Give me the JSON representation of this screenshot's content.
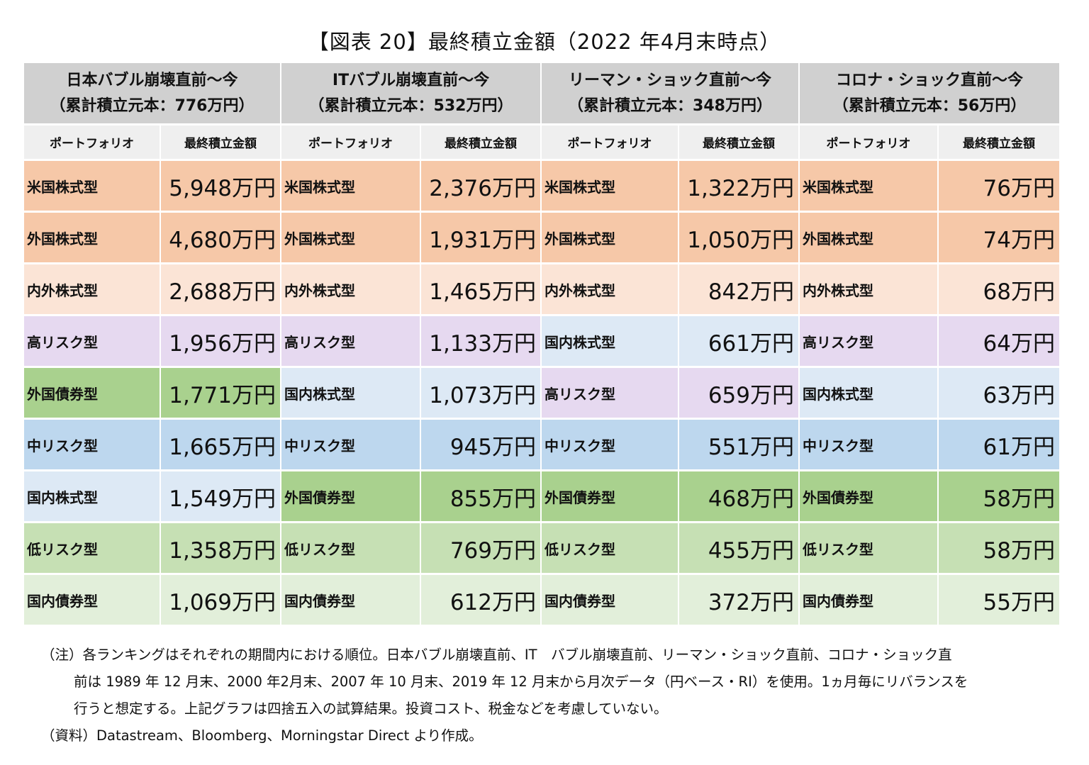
{
  "title": "【図表 20】最終積立金額（2022 年4月末時点）",
  "periods": [
    {
      "name": "日本バブル崩壊直前～今",
      "principal": "（累計積立元本：776万円）"
    },
    {
      "name": "ITバブル崩壊直前～今",
      "principal": "（累計積立元本：532万円）"
    },
    {
      "name": "リーマン・ショック直前～今",
      "principal": "（累計積立元本：348万円）"
    },
    {
      "name": "コロナ・ショック直前～今",
      "principal": "（累計積立元本：56万円）"
    }
  ],
  "subheaders": {
    "portfolio": "ポートフォリオ",
    "amount": "最終積立金額"
  },
  "rows": [
    [
      {
        "name": "米国株式型",
        "value": "5,948万円",
        "color": "us"
      },
      {
        "name": "米国株式型",
        "value": "2,376万円",
        "color": "us"
      },
      {
        "name": "米国株式型",
        "value": "1,322万円",
        "color": "us"
      },
      {
        "name": "米国株式型",
        "value": "76万円",
        "color": "us"
      }
    ],
    [
      {
        "name": "外国株式型",
        "value": "4,680万円",
        "color": "for"
      },
      {
        "name": "外国株式型",
        "value": "1,931万円",
        "color": "for"
      },
      {
        "name": "外国株式型",
        "value": "1,050万円",
        "color": "for"
      },
      {
        "name": "外国株式型",
        "value": "74万円",
        "color": "for"
      }
    ],
    [
      {
        "name": "内外株式型",
        "value": "2,688万円",
        "color": "in"
      },
      {
        "name": "内外株式型",
        "value": "1,465万円",
        "color": "in"
      },
      {
        "name": "内外株式型",
        "value": "842万円",
        "color": "in"
      },
      {
        "name": "内外株式型",
        "value": "68万円",
        "color": "in"
      }
    ],
    [
      {
        "name": "高リスク型",
        "value": "1,956万円",
        "color": "hi"
      },
      {
        "name": "高リスク型",
        "value": "1,133万円",
        "color": "hi"
      },
      {
        "name": "国内株式型",
        "value": "661万円",
        "color": "dom"
      },
      {
        "name": "高リスク型",
        "value": "64万円",
        "color": "hi"
      }
    ],
    [
      {
        "name": "外国債券型",
        "value": "1,771万円",
        "color": "fb"
      },
      {
        "name": "国内株式型",
        "value": "1,073万円",
        "color": "dom"
      },
      {
        "name": "高リスク型",
        "value": "659万円",
        "color": "hi"
      },
      {
        "name": "国内株式型",
        "value": "63万円",
        "color": "dom"
      }
    ],
    [
      {
        "name": "中リスク型",
        "value": "1,665万円",
        "color": "mid"
      },
      {
        "name": "中リスク型",
        "value": "945万円",
        "color": "mid"
      },
      {
        "name": "中リスク型",
        "value": "551万円",
        "color": "mid"
      },
      {
        "name": "中リスク型",
        "value": "61万円",
        "color": "mid"
      }
    ],
    [
      {
        "name": "国内株式型",
        "value": "1,549万円",
        "color": "dom"
      },
      {
        "name": "外国債券型",
        "value": "855万円",
        "color": "fb"
      },
      {
        "name": "外国債券型",
        "value": "468万円",
        "color": "fb"
      },
      {
        "name": "外国債券型",
        "value": "58万円",
        "color": "fb"
      }
    ],
    [
      {
        "name": "低リスク型",
        "value": "1,358万円",
        "color": "low"
      },
      {
        "name": "低リスク型",
        "value": "769万円",
        "color": "low"
      },
      {
        "name": "低リスク型",
        "value": "455万円",
        "color": "low"
      },
      {
        "name": "低リスク型",
        "value": "58万円",
        "color": "low"
      }
    ],
    [
      {
        "name": "国内債券型",
        "value": "1,069万円",
        "color": "db"
      },
      {
        "name": "国内債券型",
        "value": "612万円",
        "color": "db"
      },
      {
        "name": "国内債券型",
        "value": "372万円",
        "color": "db"
      },
      {
        "name": "国内債券型",
        "value": "55万円",
        "color": "db"
      }
    ]
  ],
  "colors": {
    "us": "#f6c8a8",
    "for": "#f6c8a8",
    "in": "#fbe4d6",
    "hi": "#e6d9f0",
    "dom": "#dde9f5",
    "fb": "#a9d18e",
    "mid": "#bdd7ee",
    "low": "#c6e0b4",
    "db": "#e2efda"
  },
  "notes": {
    "note_line1": "（注）各ランキングはそれぞれの期間内における順位。日本バブル崩壊直前、IT　バブル崩壊直前、リーマン・ショック直前、コロナ・ショック直",
    "note_line2": "前は 1989 年 12 月末、2000 年2月末、2007 年 10 月末、2019 年 12 月末から月次データ（円ベース・RI）を使用。1ヵ月毎にリバランスを",
    "note_line3": "行うと想定する。上記グラフは四捨五入の試算結果。投資コスト、税金などを考慮していない。",
    "source": "（資料）Datastream、Bloomberg、Morningstar Direct より作成。"
  }
}
